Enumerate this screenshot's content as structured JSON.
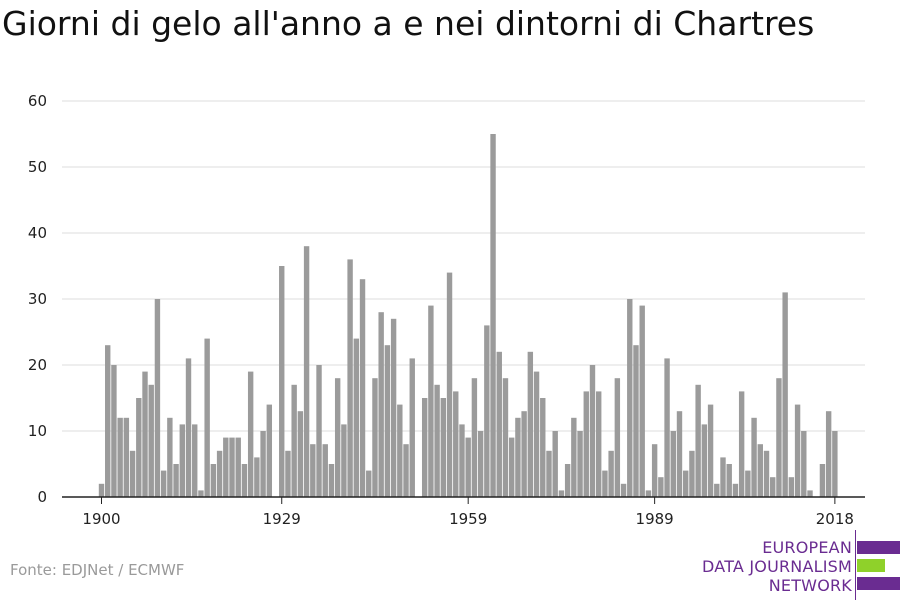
{
  "title": "Giorni di gelo all'anno a e nei dintorni di Chartres",
  "source": "Fonte: EDJNet / ECMWF",
  "logo": {
    "lines": [
      "EUROPEAN",
      "DATA JOURNALISM",
      "NETWORK"
    ],
    "colors": [
      "#6a2c91",
      "#8fd12a",
      "#6a2c91"
    ]
  },
  "colors": {
    "bar": "#9b9b9b",
    "grid": "#dddddd",
    "axis": "#222222"
  },
  "chart_data": {
    "type": "bar",
    "title": "Giorni di gelo all'anno a e nei dintorni di Chartres",
    "xlabel": "",
    "ylabel": "",
    "ylim": [
      0,
      60
    ],
    "yticks": [
      0,
      10,
      20,
      30,
      40,
      50,
      60
    ],
    "xtick_labels": [
      "1900",
      "1929",
      "1959",
      "1989",
      "2018"
    ],
    "grid": true,
    "x": [
      1900,
      1901,
      1902,
      1903,
      1904,
      1905,
      1906,
      1907,
      1908,
      1909,
      1910,
      1911,
      1912,
      1913,
      1914,
      1915,
      1916,
      1917,
      1918,
      1919,
      1920,
      1921,
      1922,
      1923,
      1924,
      1925,
      1926,
      1927,
      1928,
      1929,
      1930,
      1931,
      1932,
      1933,
      1934,
      1935,
      1936,
      1937,
      1938,
      1939,
      1940,
      1941,
      1942,
      1943,
      1944,
      1945,
      1946,
      1947,
      1948,
      1949,
      1950,
      1951,
      1952,
      1953,
      1954,
      1955,
      1956,
      1957,
      1958,
      1959,
      1960,
      1961,
      1962,
      1963,
      1964,
      1965,
      1966,
      1967,
      1968,
      1969,
      1970,
      1971,
      1972,
      1973,
      1974,
      1975,
      1976,
      1977,
      1978,
      1979,
      1980,
      1981,
      1982,
      1983,
      1984,
      1985,
      1986,
      1987,
      1988,
      1989,
      1990,
      1991,
      1992,
      1993,
      1994,
      1995,
      1996,
      1997,
      1998,
      1999,
      2000,
      2001,
      2002,
      2003,
      2004,
      2005,
      2006,
      2007,
      2008,
      2009,
      2010,
      2011,
      2012,
      2013,
      2014,
      2015,
      2016,
      2017,
      2018
    ],
    "values": [
      2,
      23,
      20,
      12,
      12,
      7,
      15,
      19,
      17,
      30,
      4,
      12,
      5,
      11,
      21,
      11,
      1,
      24,
      5,
      7,
      9,
      9,
      9,
      5,
      19,
      6,
      10,
      14,
      0,
      35,
      7,
      17,
      13,
      38,
      8,
      20,
      8,
      5,
      18,
      11,
      36,
      24,
      33,
      4,
      18,
      28,
      23,
      27,
      14,
      8,
      21,
      0,
      15,
      29,
      17,
      15,
      34,
      16,
      11,
      9,
      18,
      10,
      26,
      55,
      22,
      18,
      9,
      12,
      13,
      22,
      19,
      15,
      7,
      10,
      1,
      5,
      12,
      10,
      16,
      20,
      16,
      4,
      7,
      18,
      2,
      30,
      23,
      29,
      1,
      8,
      3,
      21,
      10,
      13,
      4,
      7,
      17,
      11,
      14,
      2,
      6,
      5,
      2,
      16,
      4,
      12,
      8,
      7,
      3,
      18,
      31,
      3,
      14,
      10,
      1,
      0,
      5,
      13,
      10
    ]
  }
}
